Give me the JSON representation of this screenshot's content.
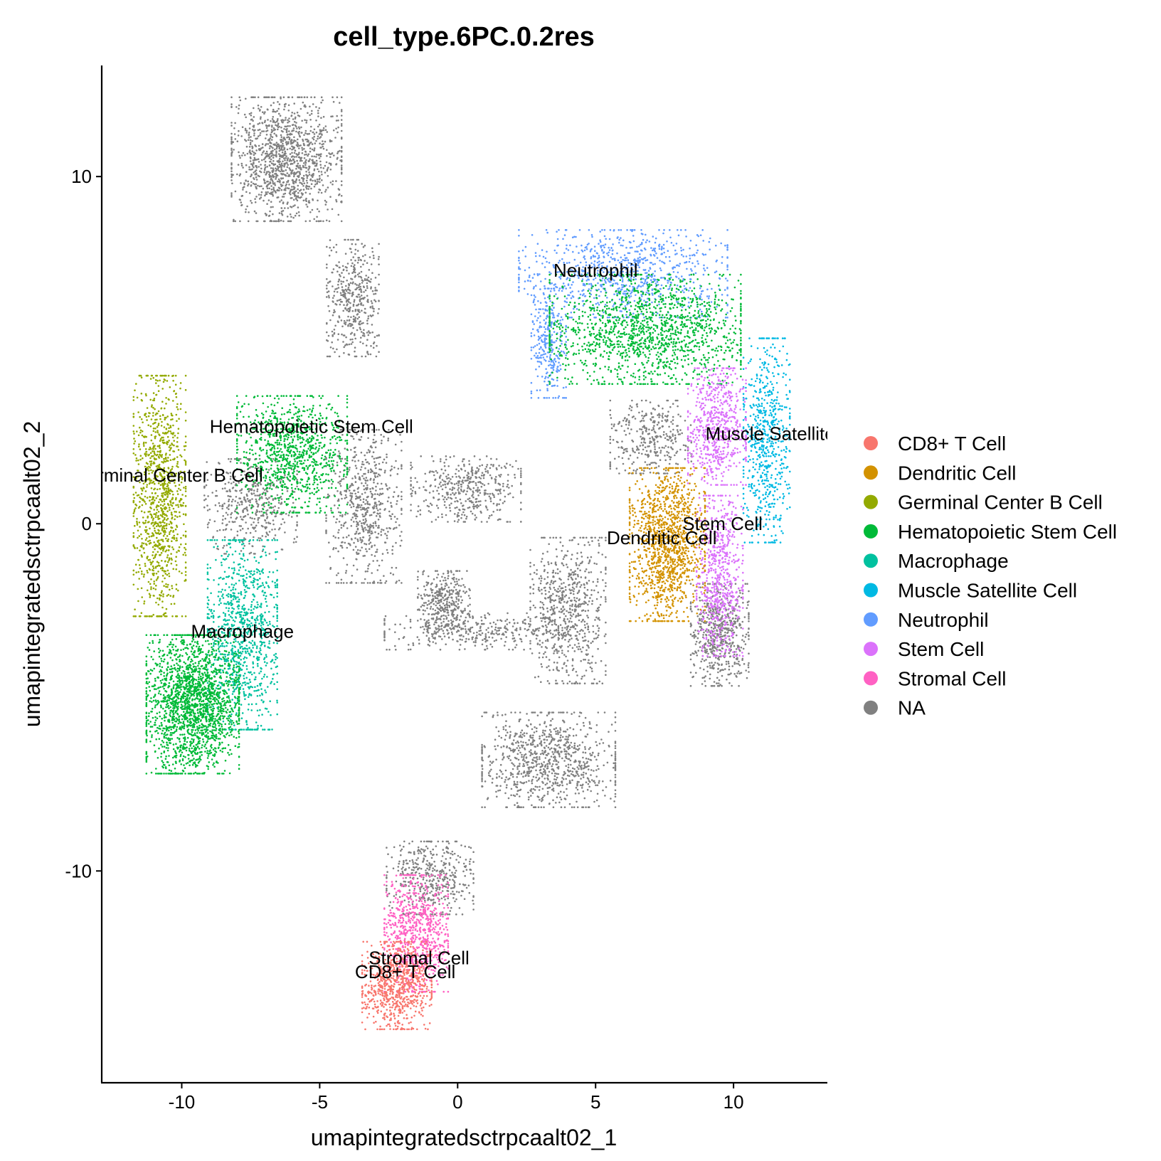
{
  "chart_data": {
    "type": "scatter",
    "title": "cell_type.6PC.0.2res",
    "xlabel": "umapintegratedsctrpcaalt02_1",
    "ylabel": "umapintegratedsctrpcaalt02_2",
    "xlim": [
      -12.9,
      13.4
    ],
    "ylim": [
      -16.1,
      13.2
    ],
    "x_ticks": [
      {
        "value": -10,
        "label": "-10"
      },
      {
        "value": -5,
        "label": "-5"
      },
      {
        "value": 0,
        "label": "0"
      },
      {
        "value": 5,
        "label": "5"
      },
      {
        "value": 10,
        "label": "10"
      }
    ],
    "y_ticks": [
      {
        "value": -10,
        "label": "-10"
      },
      {
        "value": 0,
        "label": "0"
      },
      {
        "value": 10,
        "label": "10"
      }
    ],
    "grid": false,
    "legend_position": "right",
    "series": [
      {
        "name": "CD8+ T Cell",
        "color": "#F8766D"
      },
      {
        "name": "Dendritic Cell",
        "color": "#D39200"
      },
      {
        "name": "Germinal Center B Cell",
        "color": "#93AA00"
      },
      {
        "name": "Hematopoietic Stem Cell",
        "color": "#00BA38"
      },
      {
        "name": "Macrophage",
        "color": "#00C19F"
      },
      {
        "name": "Muscle Satellite Cell",
        "color": "#00B9E3"
      },
      {
        "name": "Neutrophil",
        "color": "#619CFF"
      },
      {
        "name": "Stem Cell",
        "color": "#DB72FB"
      },
      {
        "name": "Stromal Cell",
        "color": "#FF61C3"
      },
      {
        "name": "NA",
        "color": "#808080"
      }
    ],
    "cluster_labels": [
      {
        "text": "Neutrophil",
        "x": 5.0,
        "y": 7.3
      },
      {
        "text": "Hematopoietic Stem Cell",
        "x": -5.3,
        "y": 2.8
      },
      {
        "text": "Germinal Center B Cell",
        "x": -10.5,
        "y": 1.4
      },
      {
        "text": "Macrophage",
        "x": -7.8,
        "y": -3.1
      },
      {
        "text": "Muscle Satellite Cell",
        "x": 12.0,
        "y": 2.6
      },
      {
        "text": "Stem Cell",
        "x": 9.6,
        "y": 0.0
      },
      {
        "text": "Dendritic Cell",
        "x": 7.4,
        "y": -0.4
      },
      {
        "text": "Stromal Cell",
        "x": -1.4,
        "y": -12.5
      },
      {
        "text": "CD8+ T Cell",
        "x": -1.9,
        "y": -12.9
      }
    ],
    "clusters": [
      {
        "series": "NA",
        "n": 1300,
        "cx": -6.2,
        "cy": 10.5,
        "rx": 1.9,
        "ry": 1.7
      },
      {
        "series": "NA",
        "n": 450,
        "cx": -3.8,
        "cy": 6.5,
        "rx": 0.9,
        "ry": 1.6
      },
      {
        "series": "NA",
        "n": 650,
        "cx": -3.4,
        "cy": 0.5,
        "rx": 1.3,
        "ry": 2.1
      },
      {
        "series": "NA",
        "n": 450,
        "cx": 0.3,
        "cy": 1.0,
        "rx": 1.9,
        "ry": 0.9
      },
      {
        "series": "NA",
        "n": 350,
        "cx": -0.5,
        "cy": -2.2,
        "rx": 0.9,
        "ry": 0.8
      },
      {
        "series": "NA",
        "n": 700,
        "cx": 4.0,
        "cy": -2.5,
        "rx": 1.3,
        "ry": 2.0
      },
      {
        "series": "NA",
        "n": 350,
        "cx": 0.5,
        "cy": -3.1,
        "rx": 3.0,
        "ry": 0.5
      },
      {
        "series": "NA",
        "n": 900,
        "cx": 3.3,
        "cy": -6.8,
        "rx": 2.3,
        "ry": 1.3
      },
      {
        "series": "NA",
        "n": 450,
        "cx": -1.0,
        "cy": -10.2,
        "rx": 1.5,
        "ry": 1.0
      },
      {
        "series": "NA",
        "n": 350,
        "cx": 7.0,
        "cy": 2.5,
        "rx": 1.4,
        "ry": 1.0
      },
      {
        "series": "NA",
        "n": 600,
        "cx": 9.5,
        "cy": -3.2,
        "rx": 1.0,
        "ry": 1.4
      },
      {
        "series": "NA",
        "n": 450,
        "cx": -7.5,
        "cy": 0.5,
        "rx": 1.6,
        "ry": 1.3
      },
      {
        "series": "Neutrophil",
        "n": 900,
        "cx": 6.0,
        "cy": 7.2,
        "rx": 3.6,
        "ry": 1.2
      },
      {
        "series": "Neutrophil",
        "n": 300,
        "cx": 3.3,
        "cy": 5.2,
        "rx": 0.6,
        "ry": 1.5
      },
      {
        "series": "Hematopoietic Stem Cell",
        "n": 1500,
        "cx": 6.8,
        "cy": 5.6,
        "rx": 3.3,
        "ry": 1.5
      },
      {
        "series": "Muscle Satellite Cell",
        "n": 650,
        "cx": 11.2,
        "cy": 2.4,
        "rx": 0.8,
        "ry": 2.8
      },
      {
        "series": "Stem Cell",
        "n": 650,
        "cx": 9.4,
        "cy": 2.8,
        "rx": 1.0,
        "ry": 1.6
      },
      {
        "series": "Stem Cell",
        "n": 650,
        "cx": 9.5,
        "cy": -1.5,
        "rx": 0.8,
        "ry": 2.2
      },
      {
        "series": "Dendritic Cell",
        "n": 1300,
        "cx": 7.6,
        "cy": -0.6,
        "rx": 1.3,
        "ry": 2.1
      },
      {
        "series": "Germinal Center B Cell",
        "n": 1100,
        "cx": -10.8,
        "cy": 0.8,
        "rx": 0.9,
        "ry": 3.3
      },
      {
        "series": "Hematopoietic Stem Cell",
        "n": 1000,
        "cx": -6.0,
        "cy": 2.0,
        "rx": 1.9,
        "ry": 1.6
      },
      {
        "series": "Macrophage",
        "n": 1000,
        "cx": -7.8,
        "cy": -3.2,
        "rx": 1.2,
        "ry": 2.6
      },
      {
        "series": "Hematopoietic Stem Cell",
        "n": 2000,
        "cx": -9.6,
        "cy": -5.2,
        "rx": 1.6,
        "ry": 1.9
      },
      {
        "series": "Stromal Cell",
        "n": 800,
        "cx": -1.5,
        "cy": -11.8,
        "rx": 1.1,
        "ry": 1.6
      },
      {
        "series": "CD8+ T Cell",
        "n": 800,
        "cx": -2.2,
        "cy": -13.3,
        "rx": 1.2,
        "ry": 1.2
      }
    ]
  }
}
